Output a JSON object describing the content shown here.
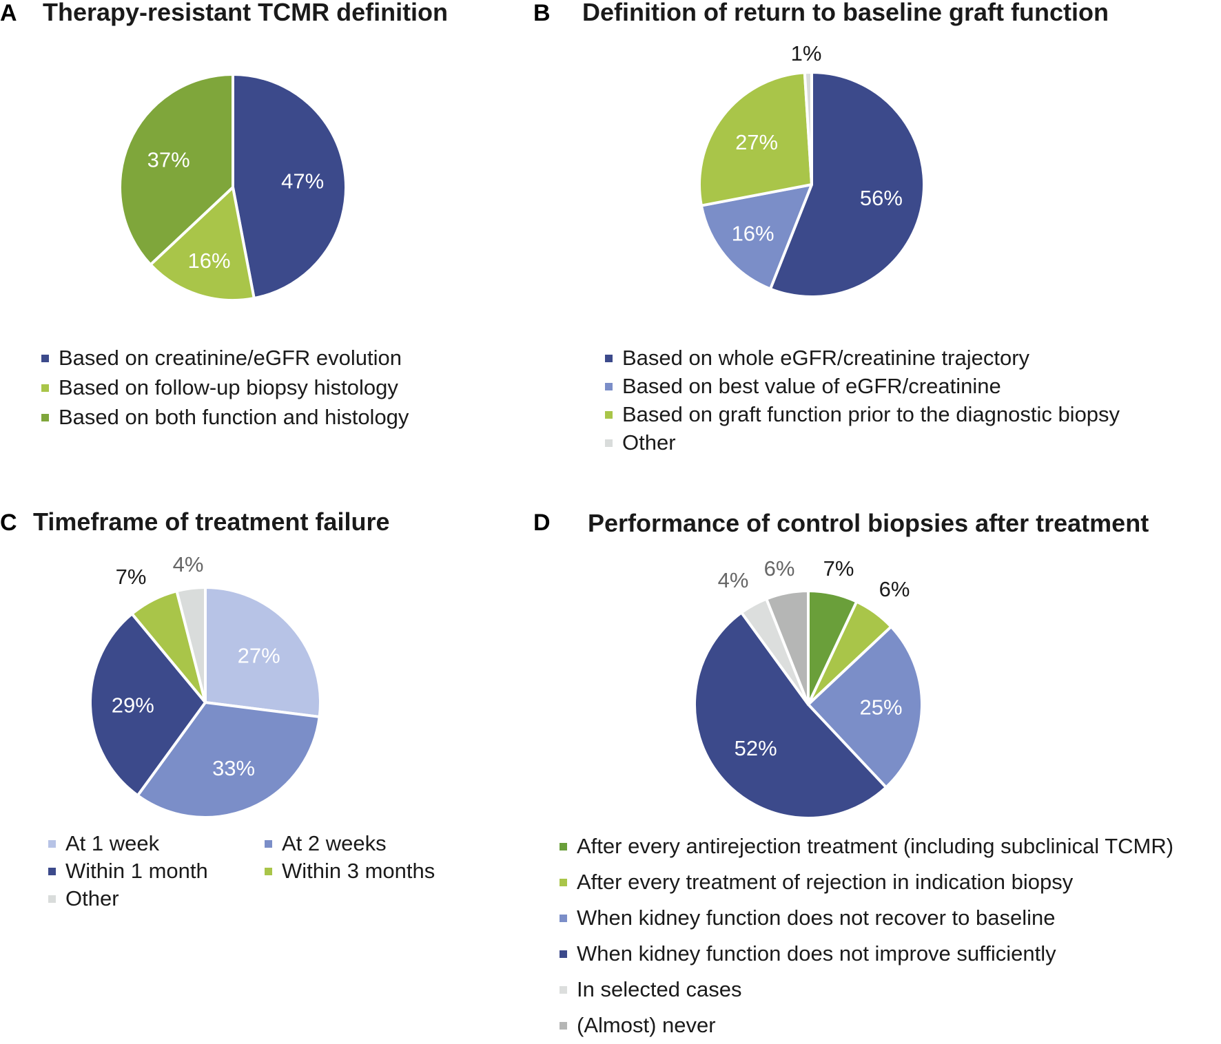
{
  "chart_data": [
    {
      "panel": "A",
      "title": "Therapy-resistant TCMR definition",
      "type": "pie",
      "slices": [
        {
          "label": "Based on creatinine/eGFR evolution",
          "value": 47,
          "display": "47%",
          "color": "#3c4a8b"
        },
        {
          "label": "Based on follow-up biopsy histology",
          "value": 16,
          "display": "16%",
          "color": "#a9c549"
        },
        {
          "label": "Based on both function and histology",
          "value": 37,
          "display": "37%",
          "color": "#7fa63b"
        }
      ]
    },
    {
      "panel": "B",
      "title": "Definition of return to baseline graft function",
      "type": "pie",
      "slices": [
        {
          "label": "Based on whole eGFR/creatinine trajectory",
          "value": 56,
          "display": "56%",
          "color": "#3c4a8b"
        },
        {
          "label": "Based on best value of eGFR/creatinine",
          "value": 16,
          "display": "16%",
          "color": "#7b8ec8"
        },
        {
          "label": "Based on graft function prior to the diagnostic biopsy",
          "value": 27,
          "display": "27%",
          "color": "#a9c549"
        },
        {
          "label": "Other",
          "value": 1,
          "display": "1%",
          "color": "#d9dcdb"
        }
      ]
    },
    {
      "panel": "C",
      "title": "Timeframe of treatment failure",
      "type": "pie",
      "slices": [
        {
          "label": "At 1 week",
          "value": 27,
          "display": "27%",
          "color": "#b7c3e6"
        },
        {
          "label": "At 2 weeks",
          "value": 33,
          "display": "33%",
          "color": "#7b8ec8"
        },
        {
          "label": "Within 1 month",
          "value": 29,
          "display": "29%",
          "color": "#3c4a8b"
        },
        {
          "label": "Within 3 months",
          "value": 7,
          "display": "7%",
          "color": "#a9c549"
        },
        {
          "label": "Other",
          "value": 4,
          "display": "4%",
          "color": "#d9dcdb"
        }
      ]
    },
    {
      "panel": "D",
      "title": "Performance of control biopsies after treatment",
      "type": "pie",
      "slices": [
        {
          "label": "After every antirejection treatment (including subclinical TCMR)",
          "value": 7,
          "display": "7%",
          "color": "#6a9f3a"
        },
        {
          "label": "After every treatment of rejection in indication biopsy",
          "value": 6,
          "display": "6%",
          "color": "#a9c549"
        },
        {
          "label": "When kidney function does not recover to baseline",
          "value": 25,
          "display": "25%",
          "color": "#7b8ec8"
        },
        {
          "label": "When kidney function does not improve sufficiently",
          "value": 52,
          "display": "52%",
          "color": "#3c4a8b"
        },
        {
          "label": "In selected cases",
          "value": 4,
          "display": "4%",
          "color": "#dcdedd"
        },
        {
          "label": "(Almost) never",
          "value": 6,
          "display": "6%",
          "color": "#b5b6b5"
        }
      ]
    }
  ]
}
